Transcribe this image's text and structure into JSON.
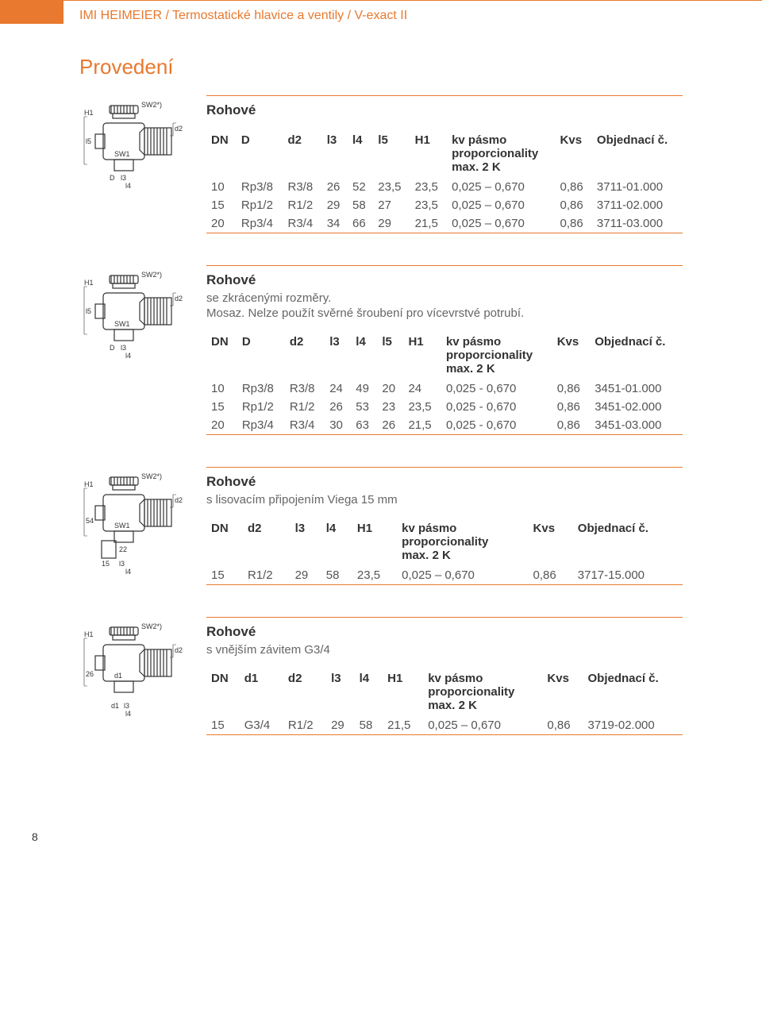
{
  "breadcrumb": "IMI HEIMEIER / Termostatické hlavice a ventily / V-exact II",
  "section_title": "Provedení",
  "blocks": [
    {
      "title": "Rohové",
      "subs": [],
      "diagram": {
        "labels": [
          "H1",
          "SW2*)",
          "d2",
          "l5",
          "SW1",
          "D",
          "l3",
          "l4"
        ],
        "variant": "a"
      },
      "columns": [
        "DN",
        "D",
        "d2",
        "l3",
        "l4",
        "l5",
        "H1",
        "kv pásmo\nproporcionality\nmax. 2 K",
        "Kvs",
        "Objednací č."
      ],
      "rows": [
        [
          "10",
          "Rp3/8",
          "R3/8",
          "26",
          "52",
          "23,5",
          "23,5",
          "0,025 – 0,670",
          "0,86",
          "3711-01.000"
        ],
        [
          "15",
          "Rp1/2",
          "R1/2",
          "29",
          "58",
          "27",
          "23,5",
          "0,025 – 0,670",
          "0,86",
          "3711-02.000"
        ],
        [
          "20",
          "Rp3/4",
          "R3/4",
          "34",
          "66",
          "29",
          "21,5",
          "0,025 – 0,670",
          "0,86",
          "3711-03.000"
        ]
      ]
    },
    {
      "title": "Rohové",
      "subs": [
        "se zkrácenými rozměry.",
        "Mosaz. Nelze použít svěrné šroubení pro vícevrstvé potrubí."
      ],
      "diagram": {
        "labels": [
          "H1",
          "SW2*)",
          "d2",
          "l5",
          "SW1",
          "D",
          "l3",
          "l4"
        ],
        "variant": "a"
      },
      "columns": [
        "DN",
        "D",
        "d2",
        "l3",
        "l4",
        "l5",
        "H1",
        "kv pásmo\nproporcionality\nmax. 2 K",
        "Kvs",
        "Objednací č."
      ],
      "rows": [
        [
          "10",
          "Rp3/8",
          "R3/8",
          "24",
          "49",
          "20",
          "24",
          "0,025 - 0,670",
          "0,86",
          "3451-01.000"
        ],
        [
          "15",
          "Rp1/2",
          "R1/2",
          "26",
          "53",
          "23",
          "23,5",
          "0,025 - 0,670",
          "0,86",
          "3451-02.000"
        ],
        [
          "20",
          "Rp3/4",
          "R3/4",
          "30",
          "63",
          "26",
          "21,5",
          "0,025 - 0,670",
          "0,86",
          "3451-03.000"
        ]
      ]
    },
    {
      "title": "Rohové",
      "subs": [
        "s lisovacím připojením Viega 15 mm"
      ],
      "diagram": {
        "labels": [
          "H1",
          "SW2*)",
          "d2",
          "54",
          "SW1",
          "22",
          "15",
          "l3",
          "l4"
        ],
        "variant": "b"
      },
      "columns": [
        "DN",
        "d2",
        "l3",
        "l4",
        "H1",
        "kv  pásmo\nproporcionality\nmax. 2 K",
        "Kvs",
        "Objednací č."
      ],
      "rows": [
        [
          "15",
          "R1/2",
          "29",
          "58",
          "23,5",
          "0,025 – 0,670",
          "0,86",
          "3717-15.000"
        ]
      ]
    },
    {
      "title": "Rohové",
      "subs": [
        "s vnějším závitem G3/4"
      ],
      "diagram": {
        "labels": [
          "H1",
          "SW2*)",
          "d2",
          "26",
          "d1",
          "l3",
          "l4"
        ],
        "variant": "c"
      },
      "columns": [
        "DN",
        "d1",
        "d2",
        "l3",
        "l4",
        "H1",
        "kv  pásmo\nproporcionality\nmax. 2 K",
        "Kvs",
        "Objednací č."
      ],
      "rows": [
        [
          "15",
          "G3/4",
          "R1/2",
          "29",
          "58",
          "21,5",
          "0,025 – 0,670",
          "0,86",
          "3719-02.000"
        ]
      ]
    }
  ],
  "page_number": "8",
  "colors": {
    "accent": "#e8792e",
    "text": "#333",
    "muted": "#666"
  }
}
